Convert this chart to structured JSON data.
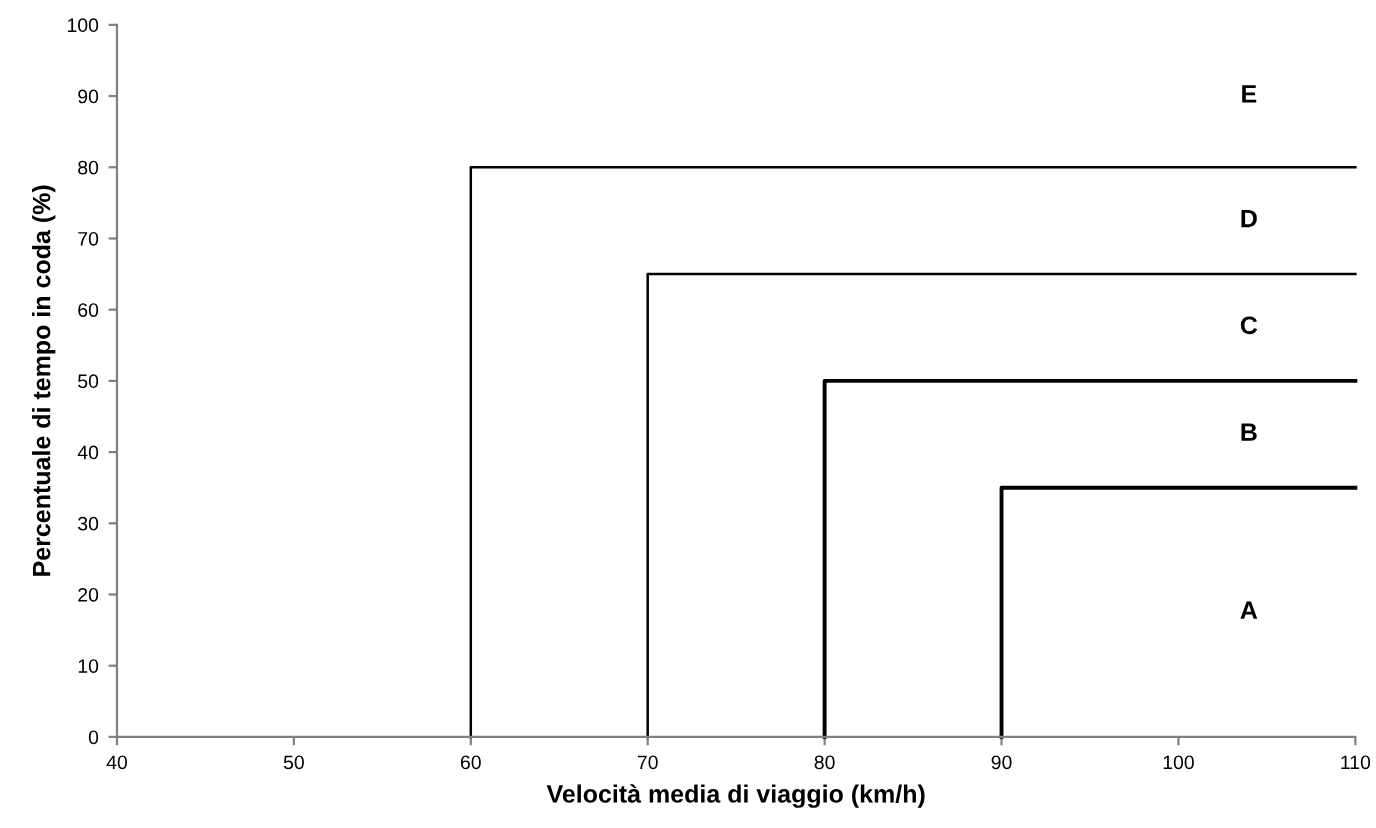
{
  "chart_data": {
    "type": "line",
    "xlabel": "Velocità media di viaggio (km/h)",
    "ylabel": "Percentuale di tempo in coda (%)",
    "xlim": [
      40,
      110
    ],
    "xticks": [
      40,
      50,
      60,
      70,
      80,
      90,
      100,
      110
    ],
    "ylim": [
      0,
      100
    ],
    "yticks": [
      0,
      10,
      20,
      30,
      40,
      50,
      60,
      70,
      80,
      90,
      100
    ],
    "grid": false,
    "legend": false,
    "marker": "none",
    "line_style": "solid",
    "series": [
      {
        "color": "#000000",
        "x": [
          60,
          60,
          110
        ],
        "values": [
          0,
          80,
          80
        ]
      },
      {
        "color": "#000000",
        "x": [
          70,
          70,
          110
        ],
        "values": [
          0,
          65,
          65
        ]
      },
      {
        "color": "#000000",
        "x": [
          80,
          80,
          110
        ],
        "values": [
          0,
          50,
          50
        ]
      },
      {
        "color": "#000000",
        "x": [
          90,
          90,
          110
        ],
        "values": [
          0,
          35,
          35
        ]
      }
    ],
    "annotations": [
      "A",
      "B",
      "C",
      "D",
      "E"
    ]
  }
}
